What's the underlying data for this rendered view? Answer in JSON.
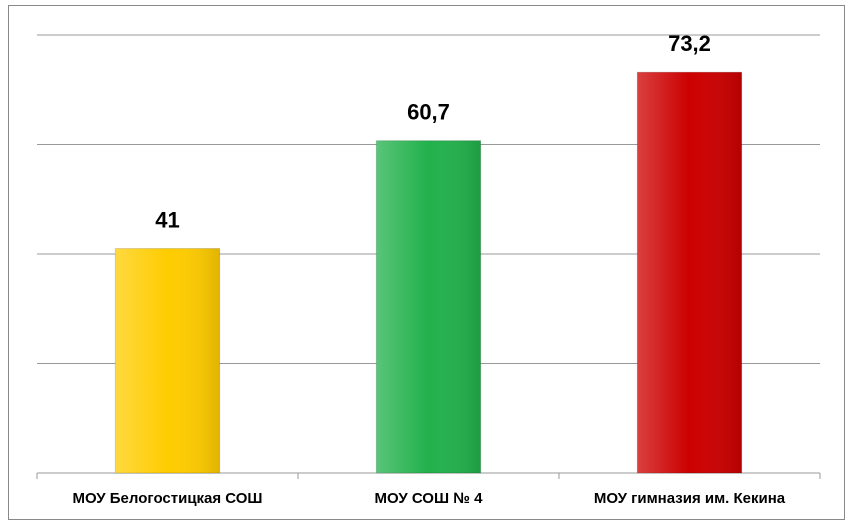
{
  "chart_data": {
    "type": "bar",
    "categories": [
      "МОУ Белогостицкая СОШ",
      "МОУ СОШ № 4",
      "МОУ гимназия им. Кекина"
    ],
    "values": [
      41,
      60.7,
      73.2
    ],
    "value_labels": [
      "41",
      "60,7",
      "73,2"
    ],
    "colors": [
      "#ffcc00",
      "#22b14c",
      "#cc0000"
    ],
    "ylim": [
      0,
      80
    ],
    "yticks": [
      0,
      20,
      40,
      60,
      80
    ],
    "grid": true
  }
}
